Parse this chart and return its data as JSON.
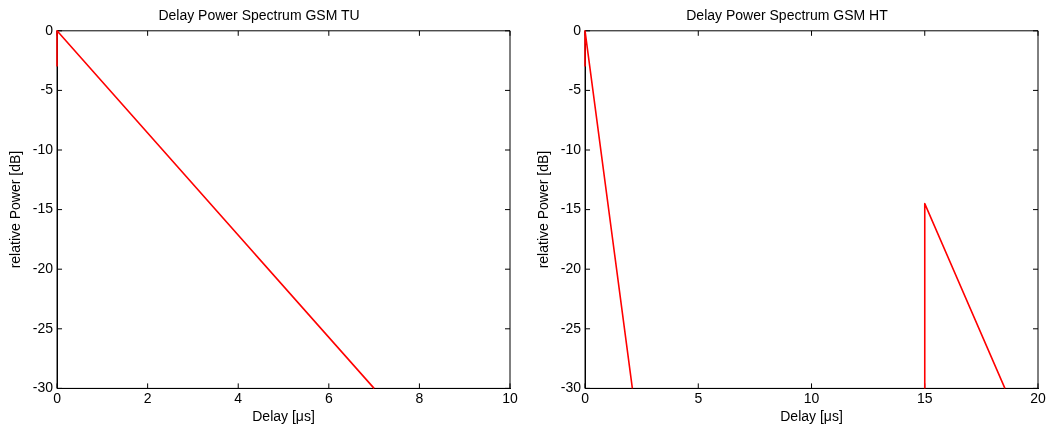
{
  "chart_data": [
    {
      "type": "line",
      "title": "Delay Power Spectrum GSM TU",
      "xlabel": "Delay [μs]",
      "ylabel": "relative Power [dB]",
      "series": [
        {
          "color": "#ff0000",
          "x": [
            0,
            0,
            7
          ],
          "values": [
            -3,
            0,
            -30
          ]
        }
      ],
      "xlim": [
        0,
        10
      ],
      "xticks": [
        0,
        2,
        4,
        6,
        8,
        10
      ],
      "ylim": [
        -30,
        0
      ],
      "yticks": [
        -30,
        -25,
        -20,
        -15,
        -10,
        -5,
        0
      ],
      "grid": false,
      "legend": false,
      "marker": "none",
      "line_style": "solid"
    },
    {
      "type": "line",
      "title": "Delay Power Spectrum GSM HT",
      "xlabel": "Delay [μs]",
      "ylabel": "relative Power [dB]",
      "series": [
        {
          "color": "#ff0000",
          "x": [
            0,
            0,
            2.09,
            null,
            15,
            15,
            18.54
          ],
          "values": [
            -3,
            0,
            -30,
            null,
            -30,
            -14.5,
            -30
          ]
        }
      ],
      "xlim": [
        0,
        20
      ],
      "xticks": [
        0,
        5,
        10,
        15,
        20
      ],
      "ylim": [
        -30,
        0
      ],
      "yticks": [
        -30,
        -25,
        -20,
        -15,
        -10,
        -5,
        0
      ],
      "grid": false,
      "legend": false,
      "marker": "none",
      "line_style": "solid"
    }
  ]
}
